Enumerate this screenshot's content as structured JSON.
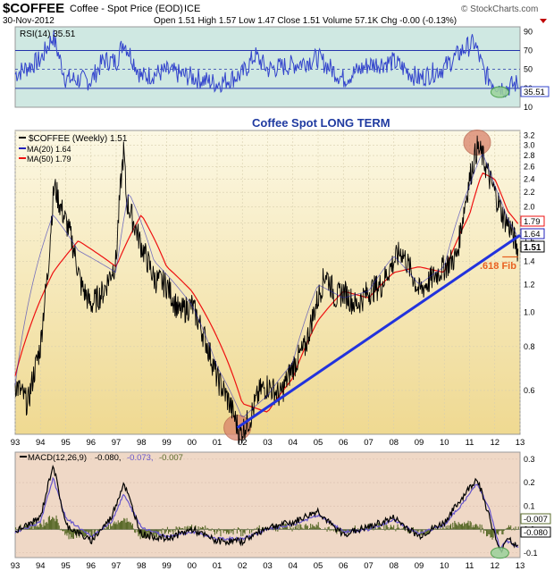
{
  "header": {
    "symbol": "$COFFEE",
    "name": "Coffee - Spot Price (EOD)",
    "exchange": "ICE",
    "date": "30-Nov-2012",
    "quote": "Open 1.51  High 1.57  Low 1.47  Close 1.51  Volume 57.1K  Chg -0.00 (-0.13%)",
    "brand": "© StockCharts.com"
  },
  "colors": {
    "rsi_bg": "#cfe8e2",
    "price_bg_top": "#fcf8e4",
    "price_bg_bottom": "#efd991",
    "macd_bg": "#efd8c6",
    "price_line": "#000000",
    "ma20": "#2222bb",
    "ma50": "#ee1111",
    "trendline": "#2233dd",
    "annotation": "#e86020",
    "circle": "#d9826a",
    "rsi_line": "#3344cc",
    "macd_line": "#000000",
    "signal_line": "#6655cc",
    "histogram": "#5a6b2a"
  },
  "rsi_panel": {
    "label": "RSI(14) 35.51",
    "current": "35.51",
    "ticks": [
      "90",
      "70",
      "50",
      "30",
      "10"
    ]
  },
  "price_panel": {
    "annotation_title": "Coffee Spot LONG TERM",
    "legend_main": "$COFFEE (Weekly) 1.51",
    "legend_ma20": "MA(20) 1.64",
    "legend_ma50": "MA(50) 1.79",
    "ticks": [
      "3.2",
      "3.0",
      "2.8",
      "2.6",
      "2.4",
      "2.2",
      "2.0",
      "1.8",
      "1.6",
      "1.4",
      "1.2",
      "1.0",
      "0.8",
      "0.6"
    ],
    "flags": {
      "ma50": "1.79",
      "ma20": "1.64",
      "close": "1.51"
    },
    "fib_label": ".618 Fib"
  },
  "macd_panel": {
    "label_prefix": "MACD(12,26,9)",
    "macd_value": "-0.080,",
    "signal_value": "-0.073,",
    "hist_value": "-0.007",
    "ticks": [
      "0.3",
      "0.2",
      "0.1",
      "0.0",
      "-0.1"
    ],
    "flags": {
      "hist": "-0.007",
      "macd": "-0.080"
    }
  },
  "x_axis": {
    "labels": [
      "93",
      "94",
      "95",
      "96",
      "97",
      "98",
      "99",
      "00",
      "01",
      "02",
      "03",
      "04",
      "05",
      "06",
      "07",
      "08",
      "09",
      "10",
      "11",
      "12",
      "13"
    ]
  },
  "chart_data": {
    "type": "line",
    "title": "$COFFEE Coffee - Spot Price (EOD) ICE",
    "x_unit": "year",
    "y_scale": "log",
    "ylim": [
      0.45,
      3.3
    ],
    "series": [
      {
        "name": "$COFFEE (Weekly)",
        "x": [
          1993.0,
          1993.5,
          1994.0,
          1994.3,
          1994.55,
          1994.8,
          1995.2,
          1995.6,
          1996.0,
          1996.5,
          1997.0,
          1997.3,
          1997.4,
          1997.7,
          1998.0,
          1998.5,
          1999.0,
          1999.5,
          2000.0,
          2000.5,
          2001.0,
          2001.5,
          2001.9,
          2002.3,
          2002.7,
          2003.0,
          2003.5,
          2004.0,
          2004.5,
          2005.0,
          2005.3,
          2005.7,
          2006.0,
          2006.5,
          2007.0,
          2007.5,
          2008.0,
          2008.3,
          2008.8,
          2009.0,
          2009.5,
          2010.0,
          2010.5,
          2010.8,
          2011.0,
          2011.3,
          2011.5,
          2011.8,
          2012.0,
          2012.3,
          2012.6,
          2012.92
        ],
        "values": [
          0.63,
          0.55,
          0.8,
          1.3,
          2.3,
          2.0,
          1.65,
          1.2,
          1.05,
          1.15,
          1.4,
          2.9,
          2.1,
          1.8,
          1.55,
          1.25,
          1.2,
          1.0,
          1.05,
          0.85,
          0.65,
          0.55,
          0.45,
          0.5,
          0.6,
          0.62,
          0.58,
          0.7,
          0.8,
          1.1,
          1.3,
          1.1,
          1.15,
          1.05,
          1.15,
          1.2,
          1.4,
          1.5,
          1.25,
          1.15,
          1.25,
          1.35,
          1.45,
          2.0,
          2.4,
          2.95,
          2.8,
          2.4,
          2.2,
          1.9,
          1.75,
          1.51
        ]
      },
      {
        "name": "MA(20)",
        "x": [
          1993.0,
          1994.5,
          1995.5,
          1997.0,
          1997.5,
          1998.5,
          2000.0,
          2001.0,
          2002.0,
          2003.0,
          2004.0,
          2005.0,
          2006.0,
          2007.0,
          2008.0,
          2009.0,
          2010.0,
          2011.0,
          2011.5,
          2012.0,
          2012.5,
          2012.92
        ],
        "values": [
          0.62,
          1.9,
          1.5,
          1.3,
          2.2,
          1.4,
          1.05,
          0.7,
          0.5,
          0.58,
          0.72,
          1.2,
          1.1,
          1.15,
          1.45,
          1.2,
          1.35,
          2.3,
          2.85,
          2.3,
          1.85,
          1.64
        ]
      },
      {
        "name": "MA(50)",
        "x": [
          1993.0,
          1994.5,
          1995.5,
          1997.0,
          1998.0,
          1999.0,
          2000.0,
          2001.0,
          2002.0,
          2003.0,
          2004.0,
          2005.0,
          2006.0,
          2007.0,
          2008.0,
          2009.0,
          2010.0,
          2011.0,
          2011.5,
          2012.0,
          2012.5,
          2012.92
        ],
        "values": [
          0.66,
          1.3,
          1.6,
          1.35,
          1.9,
          1.35,
          1.15,
          0.85,
          0.55,
          0.52,
          0.65,
          0.95,
          1.15,
          1.1,
          1.3,
          1.35,
          1.3,
          1.9,
          2.5,
          2.4,
          1.95,
          1.79
        ]
      }
    ],
    "trendline": {
      "x": [
        2001.8,
        2013.0
      ],
      "values": [
        0.47,
        1.66
      ]
    },
    "fib_level": {
      "x": [
        2012.3,
        2012.92
      ],
      "value": 1.44
    },
    "highlights": [
      {
        "x": 2001.8,
        "value": 0.47
      },
      {
        "x": 2011.3,
        "value": 3.05
      }
    ],
    "rsi": {
      "ylim": [
        10,
        95
      ],
      "x": [
        1993.0,
        1994.0,
        1994.5,
        1995.0,
        1996.0,
        1996.5,
        1997.0,
        1997.3,
        1998.0,
        1999.0,
        2000.0,
        2001.0,
        2002.0,
        2002.5,
        2003.0,
        2004.0,
        2005.0,
        2006.0,
        2007.0,
        2008.0,
        2009.0,
        2010.0,
        2010.8,
        2011.2,
        2011.6,
        2012.0,
        2012.4,
        2012.92
      ],
      "values": [
        45,
        60,
        85,
        40,
        38,
        60,
        58,
        80,
        42,
        48,
        42,
        35,
        45,
        65,
        50,
        55,
        62,
        40,
        55,
        58,
        40,
        52,
        72,
        78,
        45,
        35,
        30,
        35.5
      ]
    },
    "macd": {
      "ylim": [
        -0.12,
        0.33
      ],
      "x": [
        1993.0,
        1994.0,
        1994.5,
        1995.0,
        1996.0,
        1996.8,
        1997.3,
        1998.0,
        1999.0,
        2000.0,
        2001.0,
        2002.0,
        2003.0,
        2004.0,
        2005.0,
        2005.5,
        2006.0,
        2007.0,
        2008.0,
        2009.0,
        2010.0,
        2010.8,
        2011.3,
        2011.8,
        2012.2,
        2012.5,
        2012.92
      ],
      "macd_values": [
        -0.01,
        0.05,
        0.28,
        0.02,
        -0.05,
        0.05,
        0.2,
        -0.02,
        -0.04,
        0.0,
        -0.05,
        -0.05,
        0.01,
        0.03,
        0.08,
        0.02,
        -0.02,
        0.01,
        0.05,
        -0.03,
        0.03,
        0.15,
        0.22,
        0.05,
        -0.1,
        -0.03,
        -0.08
      ],
      "signal_values": [
        -0.01,
        0.03,
        0.22,
        0.05,
        -0.03,
        0.03,
        0.15,
        0.01,
        -0.03,
        -0.01,
        -0.04,
        -0.04,
        0.0,
        0.02,
        0.06,
        0.03,
        -0.01,
        0.0,
        0.04,
        -0.02,
        0.02,
        0.12,
        0.2,
        0.08,
        -0.08,
        -0.05,
        -0.073
      ]
    }
  }
}
